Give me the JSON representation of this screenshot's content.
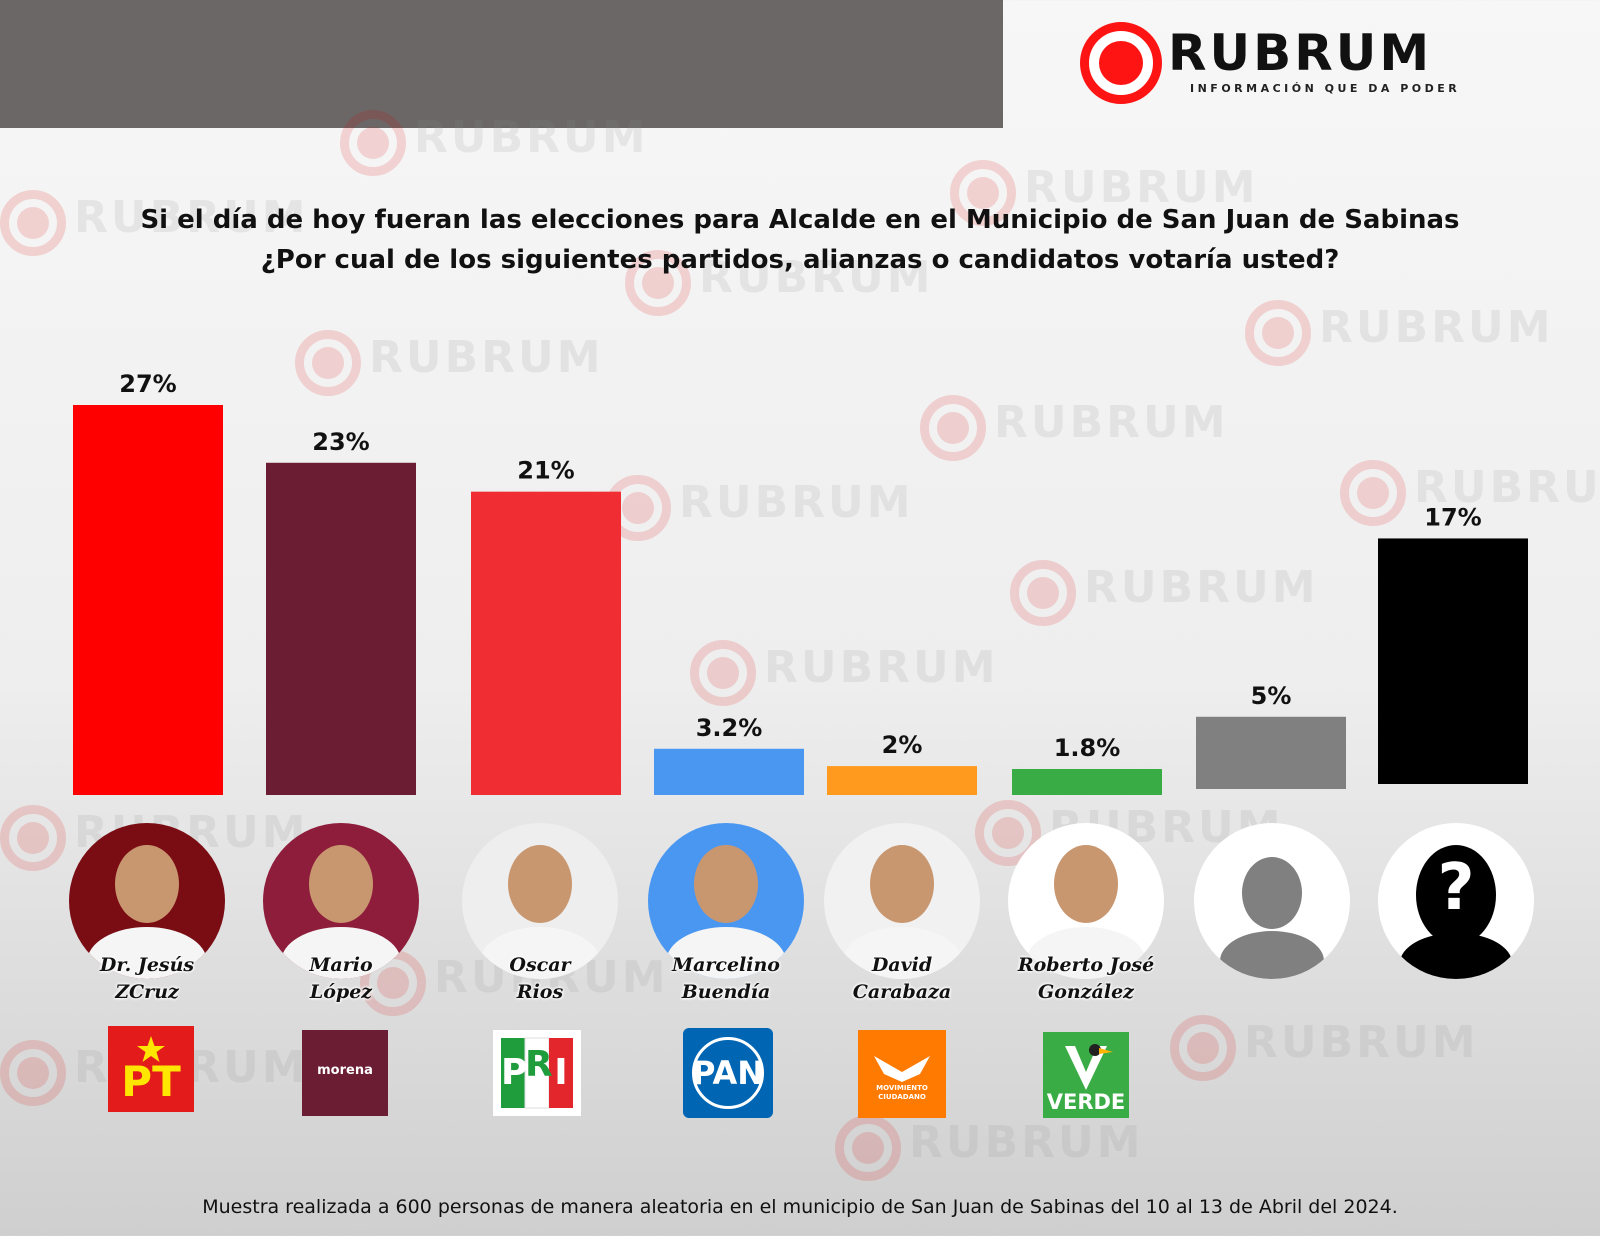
{
  "brand": {
    "name": "RUBRUM",
    "tagline": "INFORMACIÓN QUE DA PODER",
    "accent_color": "#ff1414"
  },
  "title": {
    "line1": "Si el día de hoy fueran las elecciones para Alcalde en el Municipio de San Juan de Sabinas",
    "line2": "¿Por cual de los siguientes partidos, alianzas o candidatos votaría usted?"
  },
  "chart_data": {
    "type": "bar",
    "categories": [
      "Dr. Jesús ZCruz",
      "Mario López",
      "Oscar Rios",
      "Marcelino Buendía",
      "David Carabaza",
      "Roberto José González",
      "",
      ""
    ],
    "values": [
      27,
      23,
      21,
      3.2,
      2,
      1.8,
      5,
      17
    ],
    "value_labels": [
      "27%",
      "23%",
      "21%",
      "3.2%",
      "2%",
      "1.8%",
      "5%",
      "17%"
    ],
    "colors": [
      "#ff0000",
      "#6a1d33",
      "#ef2d33",
      "#4a97f2",
      "#ff9a1f",
      "#3aac45",
      "#808080",
      "#000000"
    ],
    "ylim": [
      0,
      28
    ],
    "grid": false,
    "legend": "none"
  },
  "candidates": [
    {
      "line1": "Dr. Jesús",
      "line2": "ZCruz",
      "party": "PT"
    },
    {
      "line1": "Mario",
      "line2": "López",
      "party": "morena"
    },
    {
      "line1": "Oscar",
      "line2": "Rios",
      "party": "PRI"
    },
    {
      "line1": "Marcelino",
      "line2": "Buendía",
      "party": "PAN"
    },
    {
      "line1": "David",
      "line2": "Carabaza",
      "party": "MOVIMIENTO CIUDADANO"
    },
    {
      "line1": "Roberto José",
      "line2": "González",
      "party": "VERDE"
    },
    {
      "line1": "",
      "line2": "",
      "party": ""
    },
    {
      "line1": "",
      "line2": "",
      "party": ""
    }
  ],
  "logos": {
    "pt": "PT",
    "morena": "morena",
    "pri_p": "P",
    "pri_r": "R",
    "pri_i": "I",
    "pan": "PAN",
    "mc_line1": "MOVIMIENTO",
    "mc_line2": "CIUDADANO",
    "verde": "VERDE"
  },
  "unknown_symbol": "?",
  "footer": "Muestra realizada a 600 personas de manera aleatoria en el municipio de San Juan de Sabinas del 10 al 13 de Abril del 2024."
}
